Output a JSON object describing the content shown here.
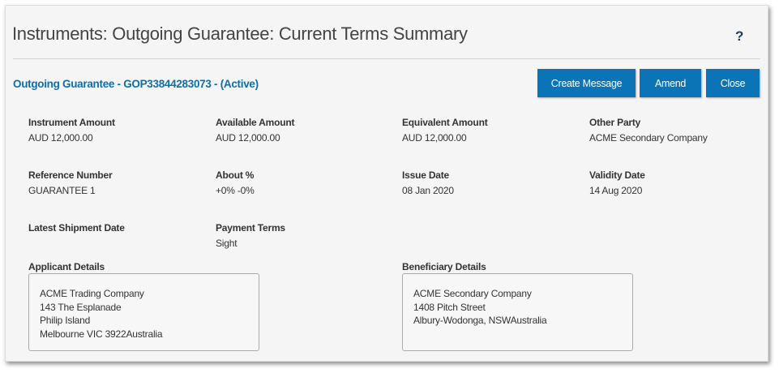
{
  "header": {
    "title": "Instruments: Outgoing Guarantee: Current Terms Summary",
    "help": "?"
  },
  "instrument": {
    "heading": "Outgoing Guarantee - GOP33844283073 - (Active)"
  },
  "buttons": {
    "create_message": "Create Message",
    "amend": "Amend",
    "close": "Close"
  },
  "fields": [
    {
      "label": "Instrument Amount",
      "value": "AUD 12,000.00"
    },
    {
      "label": "Available Amount",
      "value": "AUD 12,000.00"
    },
    {
      "label": "Equivalent Amount",
      "value": "AUD 12,000.00"
    },
    {
      "label": "Other Party",
      "value": "ACME Secondary Company"
    },
    {
      "label": "Reference Number",
      "value": "GUARANTEE 1"
    },
    {
      "label": "About %",
      "value": "+0% -0%"
    },
    {
      "label": "Issue Date",
      "value": "08 Jan 2020"
    },
    {
      "label": "Validity Date",
      "value": "14 Aug 2020"
    },
    {
      "label": "Latest Shipment Date",
      "value": ""
    },
    {
      "label": "Payment Terms",
      "value": "Sight"
    }
  ],
  "applicant": {
    "label": "Applicant Details",
    "lines": [
      "ACME Trading Company",
      "143 The Esplanade",
      "Philip Island",
      "Melbourne VIC 3922Australia"
    ]
  },
  "beneficiary": {
    "label": "Beneficiary Details",
    "lines": [
      "ACME Secondary Company",
      "1408 Pitch Street",
      "Albury-Wodonga, NSWAustralia"
    ]
  }
}
